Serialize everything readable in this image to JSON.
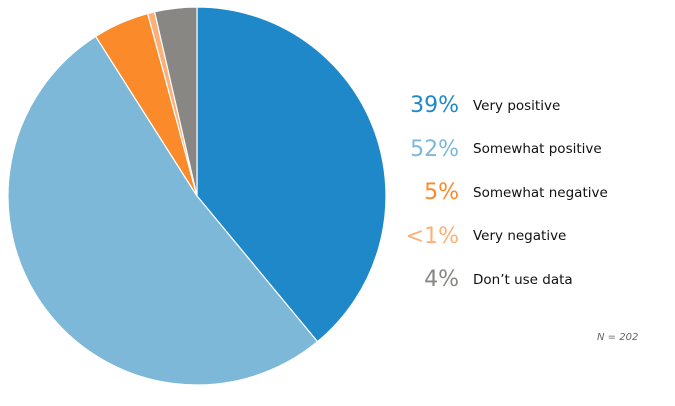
{
  "chart_data": {
    "type": "pie",
    "slices": [
      {
        "label": "Very positive",
        "pct_label": "39%",
        "value": 39.0,
        "color": "#1f88c9"
      },
      {
        "label": "Somewhat positive",
        "pct_label": "52%",
        "value": 52.0,
        "color": "#7db8d9"
      },
      {
        "label": "Somewhat negative",
        "pct_label": "5%",
        "value": 4.8,
        "color": "#fa8a2a"
      },
      {
        "label": "Very negative",
        "pct_label": "<1%",
        "value": 0.6,
        "color": "#fbb07a"
      },
      {
        "label": "Don’t use data",
        "pct_label": "4%",
        "value": 3.6,
        "color": "#888784"
      }
    ],
    "start_angle_deg": 0,
    "direction": "clockwise",
    "legend_position": "right",
    "note": "N = 202"
  }
}
